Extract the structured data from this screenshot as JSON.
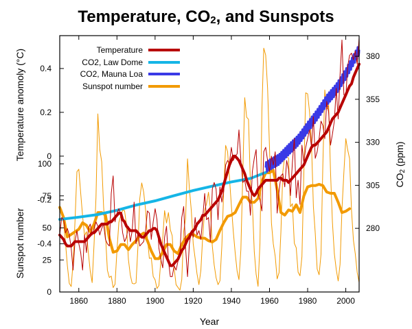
{
  "chart_data": {
    "type": "line",
    "title": {
      "before": "Temperature, CO",
      "sub": "2",
      "after": ", and Sunspots"
    },
    "xlabel": "Year",
    "ylabel_left_top": "Temperature anomoly (°C)",
    "ylabel_left_bottom": "Sunspot number",
    "ylabel_right": {
      "before": "CO",
      "sub": "2",
      "after": " (ppm)"
    },
    "xlim": [
      1850,
      2007
    ],
    "x_ticks": [
      1860,
      1880,
      1900,
      1920,
      1940,
      1960,
      1980,
      2000
    ],
    "temperature_axis": {
      "lim": [
        -0.62,
        0.55
      ],
      "ticks": [
        "0.4",
        "0.2",
        "0",
        "-0.2",
        "-0.4"
      ],
      "tick_values": [
        0.4,
        0.2,
        0,
        -0.2,
        -0.4
      ]
    },
    "co2_axis": {
      "lim": [
        243,
        392
      ],
      "ticks": [
        380,
        355,
        330,
        305,
        280
      ]
    },
    "sunspot_axis": {
      "lim": [
        0,
        200
      ],
      "ticks": [
        0,
        25,
        50,
        75,
        100
      ]
    },
    "legend": {
      "position": "top-left",
      "items": [
        "Temperature",
        "CO2, Law Dome",
        "CO2, Mauna Loa",
        "Sunspot number"
      ]
    },
    "grid": false,
    "series": [
      {
        "name": "Temperature",
        "color": "#b80000",
        "axis": "temperature",
        "style": "annual thin line with thick smoothed line",
        "x": [
          1850,
          1851,
          1852,
          1853,
          1854,
          1855,
          1856,
          1857,
          1858,
          1859,
          1860,
          1861,
          1862,
          1863,
          1864,
          1865,
          1866,
          1867,
          1868,
          1869,
          1870,
          1871,
          1872,
          1873,
          1874,
          1875,
          1876,
          1877,
          1878,
          1879,
          1880,
          1881,
          1882,
          1883,
          1884,
          1885,
          1886,
          1887,
          1888,
          1889,
          1890,
          1891,
          1892,
          1893,
          1894,
          1895,
          1896,
          1897,
          1898,
          1899,
          1900,
          1901,
          1902,
          1903,
          1904,
          1905,
          1906,
          1907,
          1908,
          1909,
          1910,
          1911,
          1912,
          1913,
          1914,
          1915,
          1916,
          1917,
          1918,
          1919,
          1920,
          1921,
          1922,
          1923,
          1924,
          1925,
          1926,
          1927,
          1928,
          1929,
          1930,
          1931,
          1932,
          1933,
          1934,
          1935,
          1936,
          1937,
          1938,
          1939,
          1940,
          1941,
          1942,
          1943,
          1944,
          1945,
          1946,
          1947,
          1948,
          1949,
          1950,
          1951,
          1952,
          1953,
          1954,
          1955,
          1956,
          1957,
          1958,
          1959,
          1960,
          1961,
          1962,
          1963,
          1964,
          1965,
          1966,
          1967,
          1968,
          1969,
          1970,
          1971,
          1972,
          1973,
          1974,
          1975,
          1976,
          1977,
          1978,
          1979,
          1980,
          1981,
          1982,
          1983,
          1984,
          1985,
          1986,
          1987,
          1988,
          1989,
          1990,
          1991,
          1992,
          1993,
          1994,
          1995,
          1996,
          1997,
          1998,
          1999,
          2000,
          2001,
          2002,
          2003,
          2004,
          2005,
          2006,
          2007
        ],
        "annual": [
          -0.36,
          -0.28,
          -0.29,
          -0.35,
          -0.33,
          -0.36,
          -0.42,
          -0.52,
          -0.39,
          -0.34,
          -0.4,
          -0.44,
          -0.52,
          -0.36,
          -0.44,
          -0.33,
          -0.31,
          -0.36,
          -0.33,
          -0.3,
          -0.32,
          -0.36,
          -0.33,
          -0.31,
          -0.38,
          -0.4,
          -0.41,
          -0.17,
          -0.09,
          -0.3,
          -0.26,
          -0.24,
          -0.27,
          -0.35,
          -0.39,
          -0.37,
          -0.32,
          -0.39,
          -0.34,
          -0.21,
          -0.4,
          -0.35,
          -0.41,
          -0.4,
          -0.39,
          -0.34,
          -0.25,
          -0.26,
          -0.38,
          -0.3,
          -0.24,
          -0.29,
          -0.42,
          -0.47,
          -0.51,
          -0.37,
          -0.32,
          -0.48,
          -0.55,
          -0.55,
          -0.5,
          -0.52,
          -0.48,
          -0.45,
          -0.28,
          -0.23,
          -0.42,
          -0.55,
          -0.4,
          -0.34,
          -0.37,
          -0.28,
          -0.36,
          -0.34,
          -0.38,
          -0.28,
          -0.17,
          -0.29,
          -0.28,
          -0.39,
          -0.15,
          -0.12,
          -0.15,
          -0.29,
          -0.14,
          -0.21,
          -0.16,
          -0.04,
          -0.02,
          -0.03,
          0.04,
          -0.02,
          0.0,
          0.01,
          0.12,
          -0.02,
          -0.12,
          -0.11,
          -0.16,
          -0.16,
          -0.27,
          -0.07,
          -0.01,
          0.03,
          -0.17,
          -0.2,
          -0.25,
          0.02,
          0.04,
          -0.02,
          -0.07,
          0.0,
          -0.04,
          0.02,
          -0.26,
          -0.16,
          -0.09,
          -0.08,
          -0.14,
          -0.02,
          -0.06,
          -0.18,
          -0.03,
          0.08,
          -0.19,
          -0.11,
          -0.22,
          0.05,
          -0.03,
          0.04,
          0.08,
          0.12,
          0.04,
          0.18,
          -0.01,
          0.02,
          0.08,
          0.16,
          0.14,
          0.08,
          0.25,
          0.2,
          0.05,
          0.1,
          0.16,
          0.31,
          0.17,
          0.37,
          0.53,
          0.28,
          0.27,
          0.41,
          0.46,
          0.47,
          0.44,
          0.48,
          0.42,
          0.54
        ],
        "smoothed": [
          -0.36,
          -0.37,
          -0.38,
          -0.4,
          -0.41,
          -0.41,
          -0.41,
          -0.4,
          -0.39,
          -0.39,
          -0.39,
          -0.39,
          -0.39,
          -0.39,
          -0.38,
          -0.37,
          -0.36,
          -0.35,
          -0.35,
          -0.34,
          -0.33,
          -0.32,
          -0.31,
          -0.31,
          -0.31,
          -0.31,
          -0.3,
          -0.3,
          -0.29,
          -0.28,
          -0.27,
          -0.26,
          -0.26,
          -0.29,
          -0.3,
          -0.32,
          -0.33,
          -0.34,
          -0.34,
          -0.34,
          -0.34,
          -0.35,
          -0.36,
          -0.37,
          -0.37,
          -0.36,
          -0.35,
          -0.34,
          -0.34,
          -0.33,
          -0.33,
          -0.34,
          -0.37,
          -0.4,
          -0.42,
          -0.44,
          -0.46,
          -0.48,
          -0.5,
          -0.5,
          -0.49,
          -0.48,
          -0.47,
          -0.45,
          -0.43,
          -0.42,
          -0.4,
          -0.38,
          -0.37,
          -0.35,
          -0.34,
          -0.33,
          -0.31,
          -0.3,
          -0.29,
          -0.27,
          -0.27,
          -0.26,
          -0.25,
          -0.24,
          -0.23,
          -0.22,
          -0.21,
          -0.2,
          -0.18,
          -0.16,
          -0.13,
          -0.1,
          -0.07,
          -0.04,
          -0.02,
          0.0,
          0.0,
          -0.01,
          -0.02,
          -0.04,
          -0.06,
          -0.08,
          -0.11,
          -0.13,
          -0.15,
          -0.17,
          -0.18,
          -0.17,
          -0.15,
          -0.14,
          -0.13,
          -0.12,
          -0.11,
          -0.11,
          -0.11,
          -0.11,
          -0.11,
          -0.11,
          -0.11,
          -0.1,
          -0.1,
          -0.11,
          -0.11,
          -0.11,
          -0.12,
          -0.11,
          -0.1,
          -0.09,
          -0.08,
          -0.07,
          -0.06,
          -0.05,
          -0.04,
          -0.02,
          0.0,
          0.02,
          0.04,
          0.05,
          0.05,
          0.06,
          0.07,
          0.08,
          0.09,
          0.1,
          0.11,
          0.13,
          0.15,
          0.17,
          0.18,
          0.19,
          0.2,
          0.22,
          0.24,
          0.26,
          0.28,
          0.3,
          0.32,
          0.33,
          0.36,
          0.38,
          0.4,
          0.42,
          0.43,
          0.44
        ]
      },
      {
        "name": "CO2, Law Dome",
        "color": "#15b5e6",
        "axis": "co2",
        "x": [
          1850,
          1860,
          1870,
          1880,
          1890,
          1900,
          1910,
          1920,
          1930,
          1940,
          1950,
          1958
        ],
        "values": [
          285.2,
          286.5,
          288.0,
          290.5,
          293.5,
          296.0,
          299.0,
          302.0,
          304.5,
          307.0,
          309.0,
          312.5
        ]
      },
      {
        "name": "CO2, Mauna Loa",
        "color": "#3a3ae6",
        "axis": "co2",
        "style": "seasonal cycle",
        "x": [
          1958,
          1960,
          1965,
          1970,
          1975,
          1980,
          1985,
          1990,
          1995,
          2000,
          2005,
          2007
        ],
        "values": [
          315.3,
          316.9,
          320.0,
          325.7,
          331.1,
          338.7,
          346.0,
          354.4,
          360.9,
          369.6,
          379.8,
          383.8
        ],
        "seasonal_amplitude": 3
      },
      {
        "name": "Sunspot number",
        "color": "#f29a00",
        "axis": "sunspot",
        "style": "annual thin line with thick smoothed line",
        "x": [
          1850,
          1851,
          1852,
          1853,
          1854,
          1855,
          1856,
          1857,
          1858,
          1859,
          1860,
          1861,
          1862,
          1863,
          1864,
          1865,
          1866,
          1867,
          1868,
          1869,
          1870,
          1871,
          1872,
          1873,
          1874,
          1875,
          1876,
          1877,
          1878,
          1879,
          1880,
          1881,
          1882,
          1883,
          1884,
          1885,
          1886,
          1887,
          1888,
          1889,
          1890,
          1891,
          1892,
          1893,
          1894,
          1895,
          1896,
          1897,
          1898,
          1899,
          1900,
          1901,
          1902,
          1903,
          1904,
          1905,
          1906,
          1907,
          1908,
          1909,
          1910,
          1911,
          1912,
          1913,
          1914,
          1915,
          1916,
          1917,
          1918,
          1919,
          1920,
          1921,
          1922,
          1923,
          1924,
          1925,
          1926,
          1927,
          1928,
          1929,
          1930,
          1931,
          1932,
          1933,
          1934,
          1935,
          1936,
          1937,
          1938,
          1939,
          1940,
          1941,
          1942,
          1943,
          1944,
          1945,
          1946,
          1947,
          1948,
          1949,
          1950,
          1951,
          1952,
          1953,
          1954,
          1955,
          1956,
          1957,
          1958,
          1959,
          1960,
          1961,
          1962,
          1963,
          1964,
          1965,
          1966,
          1967,
          1968,
          1969,
          1970,
          1971,
          1972,
          1973,
          1974,
          1975,
          1976,
          1977,
          1978,
          1979,
          1980,
          1981,
          1982,
          1983,
          1984,
          1985,
          1986,
          1987,
          1988,
          1989,
          1990,
          1991,
          1992,
          1993,
          1994,
          1995,
          1996,
          1997,
          1998,
          1999,
          2000,
          2001,
          2002,
          2003,
          2004,
          2005,
          2006,
          2007
        ],
        "annual": [
          66.6,
          64.5,
          54.1,
          39.0,
          20.6,
          6.7,
          4.3,
          22.7,
          54.8,
          93.8,
          95.8,
          77.2,
          59.1,
          44.0,
          47.0,
          30.5,
          16.3,
          7.3,
          37.6,
          74.0,
          139.0,
          111.2,
          101.6,
          66.2,
          44.7,
          17.0,
          11.3,
          12.4,
          3.4,
          6.0,
          32.3,
          54.3,
          59.7,
          63.7,
          63.5,
          52.2,
          25.4,
          13.1,
          6.8,
          6.3,
          7.1,
          35.6,
          73.0,
          85.1,
          78.0,
          64.0,
          41.8,
          26.2,
          26.7,
          12.1,
          9.5,
          2.7,
          5.0,
          24.4,
          42.0,
          63.5,
          53.8,
          62.0,
          48.5,
          43.9,
          18.6,
          5.7,
          3.6,
          1.4,
          9.6,
          47.4,
          57.1,
          103.9,
          80.6,
          63.6,
          37.6,
          26.1,
          14.2,
          5.8,
          16.7,
          44.3,
          63.9,
          69.0,
          77.8,
          64.9,
          35.7,
          21.2,
          11.1,
          5.7,
          8.7,
          36.1,
          79.7,
          114.4,
          109.6,
          88.8,
          67.8,
          47.5,
          30.6,
          16.3,
          9.6,
          33.2,
          92.6,
          151.6,
          136.3,
          134.7,
          83.9,
          69.4,
          31.5,
          13.9,
          4.4,
          38.0,
          141.7,
          190.2,
          184.8,
          159.0,
          112.3,
          53.9,
          37.6,
          27.9,
          10.2,
          15.1,
          47.0,
          93.8,
          105.9,
          105.5,
          104.5,
          66.6,
          68.9,
          38.0,
          34.5,
          15.5,
          12.6,
          27.5,
          92.5,
          155.4,
          154.6,
          140.4,
          115.9,
          66.6,
          45.9,
          17.9,
          13.4,
          29.4,
          100.2,
          157.6,
          142.6,
          145.7,
          94.3,
          54.6,
          29.9,
          17.5,
          8.6,
          21.5,
          64.3,
          93.3,
          119.6,
          111.0,
          104.0,
          63.7,
          40.4,
          29.8,
          15.2,
          7.5
        ],
        "smoothed_x": [
          1850,
          1852,
          1854,
          1856,
          1858,
          1860,
          1862,
          1864,
          1866,
          1868,
          1870,
          1872,
          1874,
          1876,
          1878,
          1880,
          1882,
          1884,
          1886,
          1888,
          1890,
          1892,
          1894,
          1896,
          1898,
          1900,
          1902,
          1904,
          1906,
          1908,
          1910,
          1912,
          1914,
          1916,
          1918,
          1920,
          1922,
          1924,
          1926,
          1928,
          1930,
          1932,
          1934,
          1936,
          1938,
          1940,
          1942,
          1944,
          1946,
          1948,
          1950,
          1952,
          1954,
          1956,
          1958,
          1960,
          1962,
          1964,
          1966,
          1968,
          1970,
          1972,
          1974,
          1976,
          1978,
          1980,
          1982,
          1984,
          1986,
          1988,
          1990,
          1992,
          1994,
          1996,
          1998,
          2000,
          2002
        ],
        "smoothed": [
          66,
          58,
          43,
          45,
          47,
          49,
          54,
          52,
          47,
          53,
          62,
          62,
          60,
          42,
          31,
          32,
          37,
          37,
          33,
          37,
          40,
          44,
          46,
          40,
          32,
          26,
          26,
          31,
          37,
          37,
          32,
          30,
          37,
          42,
          45,
          45,
          43,
          42,
          42,
          40,
          39,
          41,
          48,
          54,
          59,
          60,
          62,
          68,
          74,
          74,
          70,
          70,
          73,
          86,
          93,
          93,
          95,
          80,
          62,
          60,
          64,
          63,
          68,
          62,
          75,
          82,
          83,
          83,
          84,
          83,
          78,
          77,
          77,
          70,
          62,
          63,
          65
        ]
      }
    ]
  }
}
